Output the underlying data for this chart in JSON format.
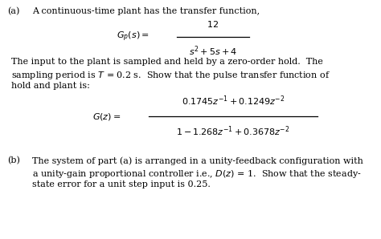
{
  "background_color": "#ffffff",
  "figsize": [
    4.74,
    2.98
  ],
  "dpi": 100,
  "fontsize": 8.0,
  "text_color": "#000000",
  "part_a_label": "(a)",
  "part_a_text": "A continuous-time plant has the transfer function,",
  "text_line1": "The input to the plant is sampled and held by a zero-order hold.  The",
  "text_line2": "sampling period is $T$ = 0.2 s.  Show that the pulse transfer function of",
  "text_line3": "hold and plant is:",
  "part_b_label": "(b)",
  "part_b_line1": "The system of part (a) is arranged in a unity-feedback configuration with",
  "part_b_line2": "a unity-gain proportional controller i.e., $D(z)$ = 1.  Show that the steady-",
  "part_b_line3": "state error for a unit step input is 0.25."
}
